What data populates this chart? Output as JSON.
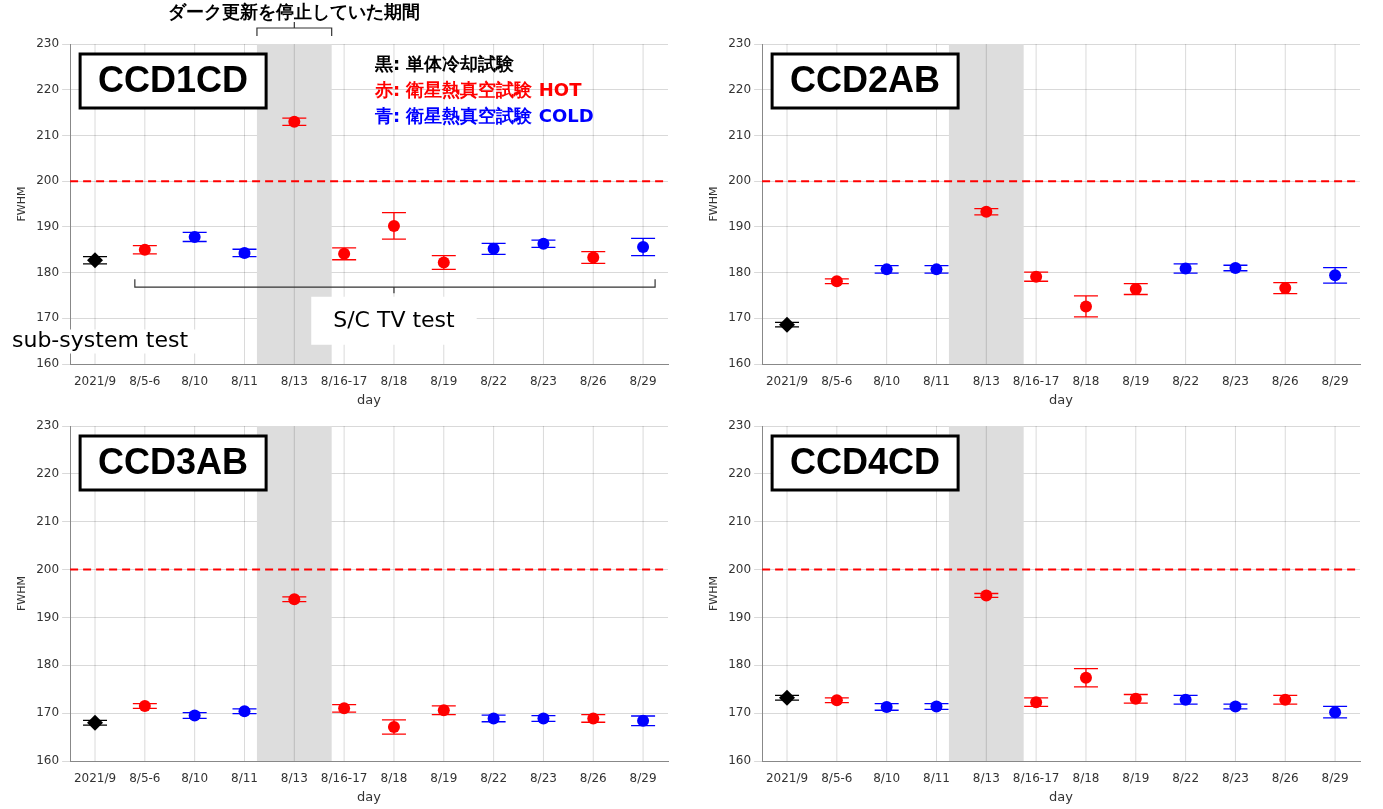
{
  "chart_data": [
    {
      "type": "scatter",
      "title": "CCD1CD",
      "xlabel": "day",
      "ylabel": "FWHM",
      "categories": [
        "2021/9",
        "8/5-6",
        "8/10",
        "8/11",
        "8/13",
        "8/16-17",
        "8/18",
        "8/19",
        "8/22",
        "8/23",
        "8/26",
        "8/29"
      ],
      "ylim": [
        160,
        230
      ],
      "yticks": [
        160,
        170,
        180,
        190,
        200,
        210,
        220,
        230
      ],
      "grid": true,
      "legend": false,
      "annotations": [
        "黒: 単体冷却試験",
        "赤: 衛星熱真空試験 HOT",
        "青: 衛星熱真空試験 COLD",
        "sub-system test",
        "S/C TV test"
      ],
      "ref_lines": [
        {
          "axis": "y",
          "value": 200,
          "color": "#ff0000",
          "line_style": "dashed"
        }
      ],
      "bands": [
        {
          "axis": "x",
          "from": "8/11",
          "to": "8/16-17",
          "label": "ダーク更新を停止していた期間",
          "color": "#dddddd"
        }
      ],
      "series": [
        {
          "color": "#000000",
          "marker": "diamond",
          "values": [
            182.7,
            null,
            null,
            null,
            null,
            null,
            null,
            null,
            null,
            null,
            null,
            null
          ],
          "errors": [
            0.8,
            null,
            null,
            null,
            null,
            null,
            null,
            null,
            null,
            null,
            null,
            null
          ]
        },
        {
          "color": "#ff0000",
          "marker": "circle",
          "values": [
            null,
            185.0,
            null,
            null,
            213.0,
            184.1,
            190.2,
            182.2,
            null,
            null,
            183.3,
            null
          ],
          "errors": [
            null,
            0.9,
            null,
            null,
            0.8,
            1.3,
            2.9,
            1.5,
            null,
            null,
            1.3,
            null
          ]
        },
        {
          "color": "#0000ff",
          "marker": "circle",
          "values": [
            null,
            null,
            187.8,
            184.3,
            null,
            null,
            null,
            null,
            185.2,
            186.3,
            null,
            185.6
          ],
          "errors": [
            null,
            null,
            1,
            0.8,
            null,
            null,
            null,
            null,
            1.2,
            0.8,
            null,
            1.9
          ]
        }
      ]
    },
    {
      "type": "scatter",
      "title": "CCD2AB",
      "xlabel": "day",
      "ylabel": "FWHM",
      "categories": [
        "2021/9",
        "8/5-6",
        "8/10",
        "8/11",
        "8/13",
        "8/16-17",
        "8/18",
        "8/19",
        "8/22",
        "8/23",
        "8/26",
        "8/29"
      ],
      "ylim": [
        160,
        230
      ],
      "yticks": [
        160,
        170,
        180,
        190,
        200,
        210,
        220,
        230
      ],
      "grid": true,
      "legend": false,
      "ref_lines": [
        {
          "axis": "y",
          "value": 200,
          "color": "#ff0000",
          "line_style": "dashed"
        }
      ],
      "bands": [
        {
          "axis": "x",
          "from": "8/11",
          "to": "8/16-17",
          "color": "#dddddd"
        }
      ],
      "series": [
        {
          "color": "#000000",
          "marker": "diamond",
          "values": [
            168.6,
            null,
            null,
            null,
            null,
            null,
            null,
            null,
            null,
            null,
            null,
            null
          ],
          "errors": [
            0.5,
            null,
            null,
            null,
            null,
            null,
            null,
            null,
            null,
            null,
            null,
            null
          ]
        },
        {
          "color": "#ff0000",
          "marker": "circle",
          "values": [
            null,
            178.1,
            null,
            null,
            193.3,
            179.1,
            172.6,
            176.4,
            null,
            null,
            176.6,
            null
          ],
          "errors": [
            null,
            0.5,
            null,
            null,
            0.7,
            1,
            2.3,
            1.2,
            null,
            null,
            1.2,
            null
          ]
        },
        {
          "color": "#0000ff",
          "marker": "circle",
          "values": [
            null,
            null,
            180.7,
            180.7,
            null,
            null,
            null,
            null,
            180.9,
            181.0,
            null,
            179.4
          ],
          "errors": [
            null,
            null,
            0.8,
            0.8,
            null,
            null,
            null,
            null,
            1,
            0.6,
            null,
            1.7
          ]
        }
      ]
    },
    {
      "type": "scatter",
      "title": "CCD3AB",
      "xlabel": "day",
      "ylabel": "FWHM",
      "categories": [
        "2021/9",
        "8/5-6",
        "8/10",
        "8/11",
        "8/13",
        "8/16-17",
        "8/18",
        "8/19",
        "8/22",
        "8/23",
        "8/26",
        "8/29"
      ],
      "ylim": [
        160,
        230
      ],
      "yticks": [
        160,
        170,
        180,
        190,
        200,
        210,
        220,
        230
      ],
      "grid": true,
      "legend": false,
      "ref_lines": [
        {
          "axis": "y",
          "value": 200,
          "color": "#ff0000",
          "line_style": "dashed"
        }
      ],
      "bands": [
        {
          "axis": "x",
          "from": "8/11",
          "to": "8/16-17",
          "color": "#dddddd"
        }
      ],
      "series": [
        {
          "color": "#000000",
          "marker": "diamond",
          "values": [
            168.0,
            null,
            null,
            null,
            null,
            null,
            null,
            null,
            null,
            null,
            null,
            null
          ],
          "errors": [
            0.5,
            null,
            null,
            null,
            null,
            null,
            null,
            null,
            null,
            null,
            null,
            null
          ]
        },
        {
          "color": "#ff0000",
          "marker": "circle",
          "values": [
            null,
            171.5,
            null,
            null,
            193.8,
            171.0,
            167.1,
            170.6,
            null,
            null,
            168.9,
            null
          ],
          "errors": [
            null,
            0.5,
            null,
            null,
            0.5,
            0.8,
            1.5,
            0.9,
            null,
            null,
            0.8,
            null
          ]
        },
        {
          "color": "#0000ff",
          "marker": "circle",
          "values": [
            null,
            null,
            169.5,
            170.4,
            null,
            null,
            null,
            null,
            168.9,
            168.9,
            null,
            168.4
          ],
          "errors": [
            null,
            null,
            0.6,
            0.5,
            null,
            null,
            null,
            null,
            0.7,
            0.6,
            null,
            1
          ]
        }
      ]
    },
    {
      "type": "scatter",
      "title": "CCD4CD",
      "xlabel": "day",
      "ylabel": "FWHM",
      "categories": [
        "2021/9",
        "8/5-6",
        "8/10",
        "8/11",
        "8/13",
        "8/16-17",
        "8/18",
        "8/19",
        "8/22",
        "8/23",
        "8/26",
        "8/29"
      ],
      "ylim": [
        160,
        230
      ],
      "yticks": [
        160,
        170,
        180,
        190,
        200,
        210,
        220,
        230
      ],
      "grid": true,
      "legend": false,
      "ref_lines": [
        {
          "axis": "y",
          "value": 200,
          "color": "#ff0000",
          "line_style": "dashed"
        }
      ],
      "bands": [
        {
          "axis": "x",
          "from": "8/11",
          "to": "8/16-17",
          "color": "#dddddd"
        }
      ],
      "series": [
        {
          "color": "#000000",
          "marker": "diamond",
          "values": [
            173.2,
            null,
            null,
            null,
            null,
            null,
            null,
            null,
            null,
            null,
            null,
            null
          ],
          "errors": [
            0.5,
            null,
            null,
            null,
            null,
            null,
            null,
            null,
            null,
            null,
            null,
            null
          ]
        },
        {
          "color": "#ff0000",
          "marker": "circle",
          "values": [
            null,
            172.7,
            null,
            null,
            194.6,
            172.3,
            177.4,
            173.0,
            null,
            null,
            172.8,
            null
          ],
          "errors": [
            null,
            0.5,
            null,
            null,
            0.4,
            0.9,
            1.9,
            0.9,
            null,
            null,
            0.9,
            null
          ]
        },
        {
          "color": "#0000ff",
          "marker": "circle",
          "values": [
            null,
            null,
            171.3,
            171.4,
            null,
            null,
            null,
            null,
            172.8,
            171.4,
            null,
            170.2
          ],
          "errors": [
            null,
            null,
            0.7,
            0.6,
            null,
            null,
            null,
            null,
            0.9,
            0.5,
            null,
            1.2
          ]
        }
      ]
    }
  ]
}
